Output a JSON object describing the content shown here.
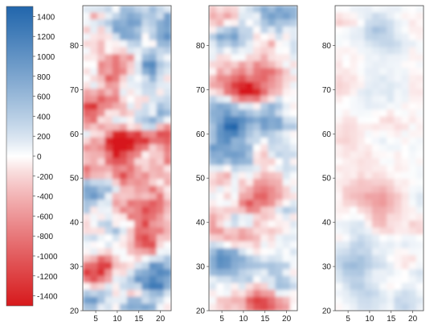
{
  "chart_data": [
    {
      "type": "heatmap",
      "role": "colorbar",
      "orientation": "vertical",
      "range": [
        -1500,
        1500
      ],
      "ticks": [
        1400,
        1200,
        1000,
        800,
        600,
        400,
        200,
        0,
        -200,
        -400,
        -600,
        -800,
        -1000,
        -1200,
        -1400
      ],
      "colors": {
        "negative": "#d7191c",
        "zero": "#ffffff",
        "positive": "#2166ac"
      }
    },
    {
      "type": "heatmap",
      "role": "panel",
      "xlim": [
        2,
        22.5
      ],
      "ylim": [
        20,
        89
      ],
      "xticks": [
        5,
        10,
        15,
        20
      ],
      "yticks": [
        20,
        30,
        40,
        50,
        60,
        70,
        80
      ],
      "amplitude": 1.0
    },
    {
      "type": "heatmap",
      "role": "panel",
      "xlim": [
        2,
        22.5
      ],
      "ylim": [
        20,
        89
      ],
      "xticks": [
        5,
        10,
        15,
        20
      ],
      "yticks": [
        20,
        30,
        40,
        50,
        60,
        70,
        80
      ],
      "amplitude": 0.7
    },
    {
      "type": "heatmap",
      "role": "panel",
      "xlim": [
        2,
        22.5
      ],
      "ylim": [
        20,
        89
      ],
      "xticks": [
        5,
        10,
        15,
        20
      ],
      "yticks": [
        20,
        30,
        40,
        50,
        60,
        70,
        80
      ],
      "amplitude": 0.25
    }
  ]
}
